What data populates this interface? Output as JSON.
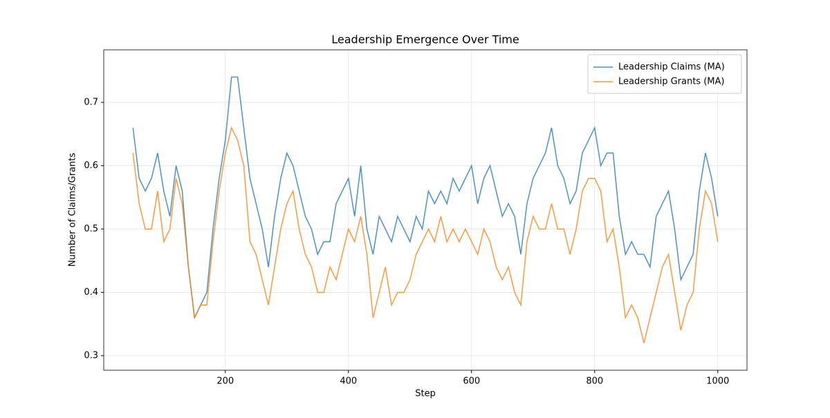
{
  "chart_data": {
    "type": "line",
    "title": "Leadership Emergence Over Time",
    "x_label": "Step",
    "y_label": "Number of Claims/Grants",
    "x": [
      50,
      60,
      70,
      80,
      90,
      100,
      110,
      120,
      130,
      140,
      150,
      160,
      170,
      180,
      190,
      200,
      210,
      220,
      230,
      240,
      250,
      260,
      270,
      280,
      290,
      300,
      310,
      320,
      330,
      340,
      350,
      360,
      370,
      380,
      390,
      400,
      410,
      420,
      430,
      440,
      450,
      460,
      470,
      480,
      490,
      500,
      510,
      520,
      530,
      540,
      550,
      560,
      570,
      580,
      590,
      600,
      610,
      620,
      630,
      640,
      650,
      660,
      670,
      680,
      690,
      700,
      710,
      720,
      730,
      740,
      750,
      760,
      770,
      780,
      790,
      800,
      810,
      820,
      830,
      840,
      850,
      860,
      870,
      880,
      890,
      900,
      910,
      920,
      930,
      940,
      950,
      960,
      970,
      980,
      990,
      1000
    ],
    "series": [
      {
        "name": "Leadership Claims (MA)",
        "color": "#1f77b4",
        "values": [
          0.66,
          0.58,
          0.56,
          0.58,
          0.62,
          0.56,
          0.52,
          0.6,
          0.56,
          0.44,
          0.36,
          0.38,
          0.4,
          0.5,
          0.58,
          0.64,
          0.74,
          0.74,
          0.66,
          0.58,
          0.54,
          0.5,
          0.44,
          0.52,
          0.58,
          0.62,
          0.6,
          0.56,
          0.52,
          0.5,
          0.46,
          0.48,
          0.48,
          0.54,
          0.56,
          0.58,
          0.52,
          0.6,
          0.5,
          0.46,
          0.52,
          0.5,
          0.48,
          0.52,
          0.5,
          0.48,
          0.52,
          0.5,
          0.56,
          0.54,
          0.56,
          0.54,
          0.58,
          0.56,
          0.58,
          0.6,
          0.54,
          0.58,
          0.6,
          0.56,
          0.52,
          0.54,
          0.52,
          0.46,
          0.54,
          0.58,
          0.6,
          0.62,
          0.66,
          0.6,
          0.58,
          0.54,
          0.56,
          0.62,
          0.64,
          0.66,
          0.6,
          0.62,
          0.62,
          0.52,
          0.46,
          0.48,
          0.46,
          0.46,
          0.44,
          0.52,
          0.54,
          0.56,
          0.5,
          0.42,
          0.44,
          0.46,
          0.56,
          0.62,
          0.58,
          0.52
        ]
      },
      {
        "name": "Leadership Grants (MA)",
        "color": "#ff7f0e",
        "values": [
          0.62,
          0.54,
          0.5,
          0.5,
          0.56,
          0.48,
          0.5,
          0.58,
          0.54,
          0.44,
          0.36,
          0.38,
          0.38,
          0.48,
          0.56,
          0.62,
          0.66,
          0.64,
          0.6,
          0.48,
          0.46,
          0.42,
          0.38,
          0.44,
          0.5,
          0.54,
          0.56,
          0.5,
          0.46,
          0.44,
          0.4,
          0.4,
          0.44,
          0.42,
          0.46,
          0.5,
          0.48,
          0.52,
          0.46,
          0.36,
          0.4,
          0.44,
          0.38,
          0.4,
          0.4,
          0.42,
          0.46,
          0.48,
          0.5,
          0.48,
          0.52,
          0.48,
          0.5,
          0.48,
          0.5,
          0.48,
          0.46,
          0.5,
          0.48,
          0.44,
          0.42,
          0.44,
          0.4,
          0.38,
          0.48,
          0.52,
          0.5,
          0.5,
          0.54,
          0.5,
          0.5,
          0.46,
          0.5,
          0.56,
          0.58,
          0.58,
          0.56,
          0.48,
          0.5,
          0.44,
          0.36,
          0.38,
          0.36,
          0.32,
          0.36,
          0.4,
          0.44,
          0.46,
          0.4,
          0.34,
          0.38,
          0.4,
          0.5,
          0.56,
          0.54,
          0.48
        ]
      }
    ],
    "xlim": [
      2.5,
      1047.5
    ],
    "ylim": [
      0.277,
      0.783
    ],
    "xticks": [
      200,
      400,
      600,
      800,
      1000
    ],
    "yticks": [
      0.3,
      0.4,
      0.5,
      0.6,
      0.7
    ],
    "grid": true,
    "legend": "upper right"
  }
}
